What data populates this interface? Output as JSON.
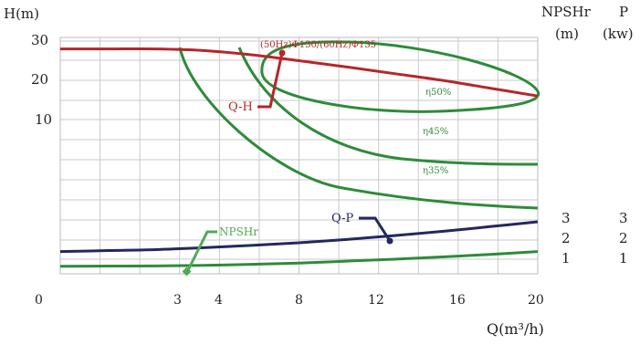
{
  "chart_data": {
    "type": "line",
    "texts": {
      "y_title": "H(m)",
      "right_title_1": "NPSHr",
      "right_title_2": "P",
      "right_unit_1": "(m)",
      "right_unit_2": "(kw)",
      "x_title": "Q(m³/h)"
    },
    "x_ticks": [
      "0",
      "3",
      "4",
      "8",
      "12",
      "16",
      "20"
    ],
    "x_tick_values": [
      0,
      3,
      4,
      8,
      12,
      16,
      20
    ],
    "y_ticks": [
      "30",
      "20",
      "10"
    ],
    "y_tick_values": [
      30,
      20,
      10
    ],
    "right_ticks_1": [
      "3",
      "2",
      "1"
    ],
    "right_ticks_2": [
      "3",
      "2",
      "1"
    ],
    "colors": {
      "qh": "#b5272a",
      "efficiency": "#2e8b3a",
      "qp": "#23285f",
      "npshr": "#55a855",
      "grid": "#c9c9c9",
      "text": "#222222"
    },
    "series": [
      {
        "name": "Q-H",
        "label": "Q-H",
        "annotation": "(50Hz)Φ130/(60Hz)Φ135",
        "x": [
          0,
          2,
          4,
          6,
          8,
          10,
          12,
          14,
          16,
          18,
          20
        ],
        "y": [
          28.0,
          28.0,
          28.0,
          27.6,
          26.5,
          25.0,
          23.4,
          21.7,
          20.0,
          18.0,
          16.0
        ]
      },
      {
        "name": "Q-P",
        "label": "Q-P",
        "x": [
          0,
          2,
          4,
          6,
          8,
          10,
          12,
          14,
          16,
          18,
          20
        ],
        "y": [
          1.4,
          1.45,
          1.5,
          1.6,
          1.72,
          1.86,
          2.03,
          2.23,
          2.45,
          2.7,
          2.95
        ]
      },
      {
        "name": "NPSHr",
        "label": "NPSHr",
        "x": [
          0,
          2,
          4,
          6,
          8,
          10,
          12,
          14,
          16,
          18,
          20
        ],
        "y": [
          0.63,
          0.64,
          0.65,
          0.68,
          0.73,
          0.8,
          0.9,
          1.0,
          1.12,
          1.25,
          1.4
        ]
      }
    ],
    "efficiency_curves": [
      {
        "label": "η35%"
      },
      {
        "label": "η45%"
      },
      {
        "label": "η50%"
      }
    ],
    "xlim": [
      0,
      20
    ],
    "grid": true
  }
}
